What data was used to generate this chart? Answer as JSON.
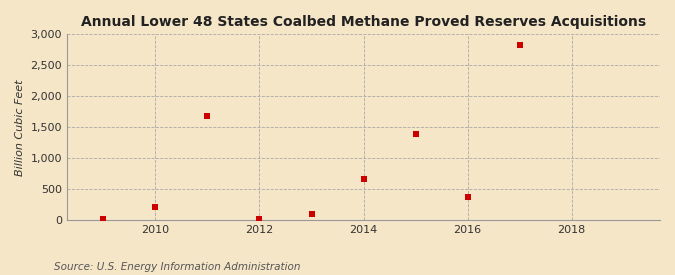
{
  "title": "Annual Lower 48 States Coalbed Methane Proved Reserves Acquisitions",
  "ylabel": "Billion Cubic Feet",
  "source": "Source: U.S. Energy Information Administration",
  "background_color": "#f5e6c8",
  "plot_background_color": "#f5e6c8",
  "marker_color": "#cc0000",
  "marker_size": 5,
  "marker_style": "s",
  "years": [
    2009,
    2010,
    2011,
    2012,
    2013,
    2014,
    2015,
    2016,
    2017
  ],
  "values": [
    20,
    215,
    1680,
    30,
    100,
    670,
    1400,
    370,
    2830
  ],
  "xlim": [
    2008.3,
    2019.7
  ],
  "ylim": [
    0,
    3000
  ],
  "yticks": [
    0,
    500,
    1000,
    1500,
    2000,
    2500,
    3000
  ],
  "ytick_labels": [
    "0",
    "500",
    "1,000",
    "1,500",
    "2,000",
    "2,500",
    "3,000"
  ],
  "xticks": [
    2010,
    2012,
    2014,
    2016,
    2018
  ],
  "grid_color": "#aaaaaa",
  "grid_style": "--",
  "title_fontsize": 10,
  "label_fontsize": 8,
  "tick_fontsize": 8,
  "source_fontsize": 7.5
}
